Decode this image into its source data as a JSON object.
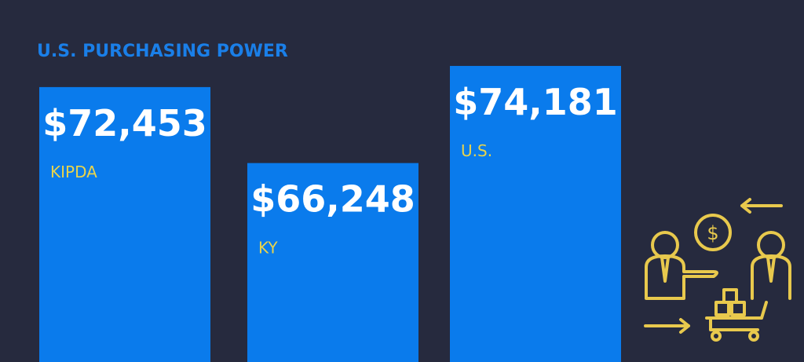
{
  "chart_data": {
    "type": "bar",
    "title": "U.S. PURCHASING POWER",
    "categories": [
      "KIPDA",
      "KY",
      "U.S."
    ],
    "values": [
      72453,
      66248,
      74181
    ],
    "value_labels": [
      "$72,453",
      "$66,248",
      "$74,181"
    ],
    "color": "#0a7bec",
    "ylim": [
      50000,
      77000
    ]
  }
}
